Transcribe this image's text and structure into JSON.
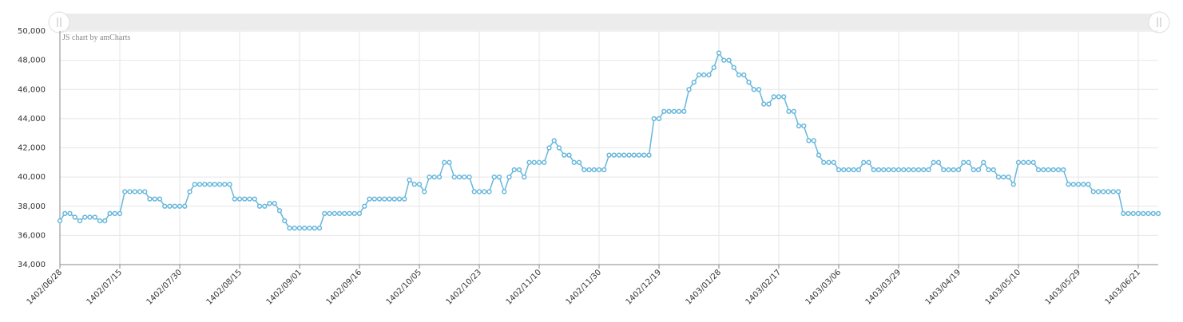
{
  "chart_data": {
    "type": "line",
    "credit": "JS chart by amCharts",
    "color": "#67b7dc",
    "categories": [
      "1402/06/28",
      null,
      null,
      null,
      null,
      null,
      null,
      null,
      null,
      null,
      null,
      null,
      "1402/07/15",
      null,
      null,
      null,
      null,
      null,
      null,
      null,
      null,
      null,
      null,
      null,
      "1402/07/30",
      null,
      null,
      null,
      null,
      null,
      null,
      null,
      null,
      null,
      null,
      null,
      "1402/08/15",
      null,
      null,
      null,
      null,
      null,
      null,
      null,
      null,
      null,
      null,
      null,
      "1402/09/01",
      null,
      null,
      null,
      null,
      null,
      null,
      null,
      null,
      null,
      null,
      null,
      "1402/09/16",
      null,
      null,
      null,
      null,
      null,
      null,
      null,
      null,
      null,
      null,
      null,
      "1402/10/05",
      null,
      null,
      null,
      null,
      null,
      null,
      null,
      null,
      null,
      null,
      null,
      "1402/10/23",
      null,
      null,
      null,
      null,
      null,
      null,
      null,
      null,
      null,
      null,
      null,
      "1402/11/10",
      null,
      null,
      null,
      null,
      null,
      null,
      null,
      null,
      null,
      null,
      null,
      "1402/11/30",
      null,
      null,
      null,
      null,
      null,
      null,
      null,
      null,
      null,
      null,
      null,
      "1402/12/19",
      null,
      null,
      null,
      null,
      null,
      null,
      null,
      null,
      null,
      null,
      null,
      "1403/01/28",
      null,
      null,
      null,
      null,
      null,
      null,
      null,
      null,
      null,
      null,
      null,
      "1403/02/17",
      null,
      null,
      null,
      null,
      null,
      null,
      null,
      null,
      null,
      null,
      null,
      "1403/03/06",
      null,
      null,
      null,
      null,
      null,
      null,
      null,
      null,
      null,
      null,
      null,
      "1403/03/29",
      null,
      null,
      null,
      null,
      null,
      null,
      null,
      null,
      null,
      null,
      null,
      "1403/04/19",
      null,
      null,
      null,
      null,
      null,
      null,
      null,
      null,
      null,
      null,
      null,
      "1403/05/10",
      null,
      null,
      null,
      null,
      null,
      null,
      null,
      null,
      null,
      null,
      null,
      "1403/05/29",
      null,
      null,
      null,
      null,
      null,
      null,
      null,
      null,
      null,
      null,
      null,
      "1403/06/21",
      null,
      null,
      null,
      null
    ],
    "values": [
      37000,
      37500,
      37500,
      37250,
      37000,
      37250,
      37250,
      37250,
      37000,
      37000,
      37500,
      37500,
      37500,
      39000,
      39000,
      39000,
      39000,
      39000,
      38500,
      38500,
      38500,
      38000,
      38000,
      38000,
      38000,
      38000,
      39000,
      39500,
      39500,
      39500,
      39500,
      39500,
      39500,
      39500,
      39500,
      38500,
      38500,
      38500,
      38500,
      38500,
      38000,
      38000,
      38200,
      38200,
      37700,
      37000,
      36500,
      36500,
      36500,
      36500,
      36500,
      36500,
      36500,
      37500,
      37500,
      37500,
      37500,
      37500,
      37500,
      37500,
      37500,
      38000,
      38500,
      38500,
      38500,
      38500,
      38500,
      38500,
      38500,
      38500,
      39800,
      39500,
      39500,
      39000,
      40000,
      40000,
      40000,
      41000,
      41000,
      40000,
      40000,
      40000,
      40000,
      39000,
      39000,
      39000,
      39000,
      40000,
      40000,
      39000,
      40000,
      40500,
      40500,
      40000,
      41000,
      41000,
      41000,
      41000,
      42000,
      42500,
      42000,
      41500,
      41500,
      41000,
      41000,
      40500,
      40500,
      40500,
      40500,
      40500,
      41500,
      41500,
      41500,
      41500,
      41500,
      41500,
      41500,
      41500,
      41500,
      44000,
      44000,
      44500,
      44500,
      44500,
      44500,
      44500,
      46000,
      46500,
      47000,
      47000,
      47000,
      47500,
      48500,
      48000,
      48000,
      47500,
      47000,
      47000,
      46500,
      46000,
      46000,
      45000,
      45000,
      45500,
      45500,
      45500,
      44500,
      44500,
      43500,
      43500,
      42500,
      42500,
      41500,
      41000,
      41000,
      41000,
      40500,
      40500,
      40500,
      40500,
      40500,
      41000,
      41000,
      40500,
      40500,
      40500,
      40500,
      40500,
      40500,
      40500,
      40500,
      40500,
      40500,
      40500,
      40500,
      41000,
      41000,
      40500,
      40500,
      40500,
      40500,
      41000,
      41000,
      40500,
      40500,
      41000,
      40500,
      40500,
      40000,
      40000,
      40000,
      39500,
      41000,
      41000,
      41000,
      41000,
      40500,
      40500,
      40500,
      40500,
      40500,
      40500,
      39500,
      39500,
      39500,
      39500,
      39500,
      39000,
      39000,
      39000,
      39000,
      39000,
      39000,
      37500,
      37500,
      37500,
      37500,
      37500,
      37500,
      37500,
      37500
    ],
    "ylim": [
      34000,
      50000
    ],
    "yticks": [
      {
        "value": 34000,
        "label": "34,000"
      },
      {
        "value": 36000,
        "label": "36,000"
      },
      {
        "value": 38000,
        "label": "38,000"
      },
      {
        "value": 40000,
        "label": "40,000"
      },
      {
        "value": 42000,
        "label": "42,000"
      },
      {
        "value": 44000,
        "label": "44,000"
      },
      {
        "value": 46000,
        "label": "46,000"
      },
      {
        "value": 48000,
        "label": "48,000"
      },
      {
        "value": 50000,
        "label": "50,000"
      }
    ],
    "grid": true
  }
}
